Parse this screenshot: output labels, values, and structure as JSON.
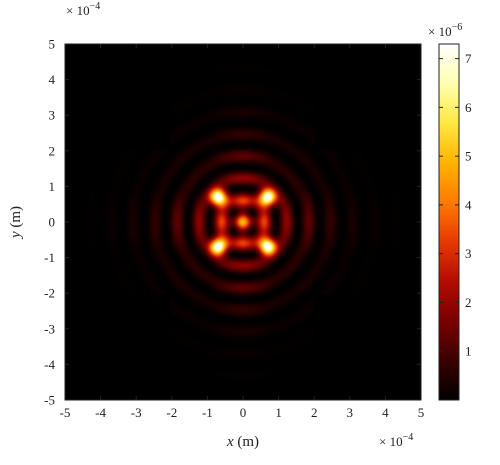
{
  "chart_data": {
    "type": "heatmap",
    "title": "",
    "xlabel": {
      "var": "x",
      "unit": " (m)"
    },
    "ylabel": {
      "var": "y",
      "unit": " (m)"
    },
    "x_ticks": [
      "-5",
      "-4",
      "-3",
      "-2",
      "-1",
      "0",
      "1",
      "2",
      "3",
      "4",
      "5"
    ],
    "y_ticks": [
      "5",
      "4",
      "3",
      "2",
      "1",
      "0",
      "-1",
      "-2",
      "-3",
      "-4",
      "-5"
    ],
    "xlim": [
      -5,
      5
    ],
    "ylim": [
      -5,
      5
    ],
    "x_scale": {
      "base": "× 10",
      "exponent": "−4"
    },
    "y_scale": {
      "base": "× 10",
      "exponent": "−4"
    },
    "colorbar": {
      "ticks": [
        "1",
        "2",
        "3",
        "4",
        "5",
        "6",
        "7"
      ],
      "range": [
        0,
        7.3
      ],
      "scale": {
        "base": "× 10",
        "exponent": "−6"
      },
      "colormap": "hot",
      "colors": [
        "#000000",
        "#3a0000",
        "#7a0000",
        "#b40b00",
        "#e63a00",
        "#ff7a00",
        "#ffb400",
        "#ffe840",
        "#ffffb0",
        "#ffffff"
      ]
    },
    "grid": false,
    "peaks": [
      {
        "x": -0.7,
        "y": 0.7,
        "value": 7.2
      },
      {
        "x": 0.7,
        "y": 0.7,
        "value": 7.2
      },
      {
        "x": -0.7,
        "y": -0.7,
        "value": 7.2
      },
      {
        "x": 0.7,
        "y": -0.7,
        "value": 7.2
      }
    ]
  }
}
